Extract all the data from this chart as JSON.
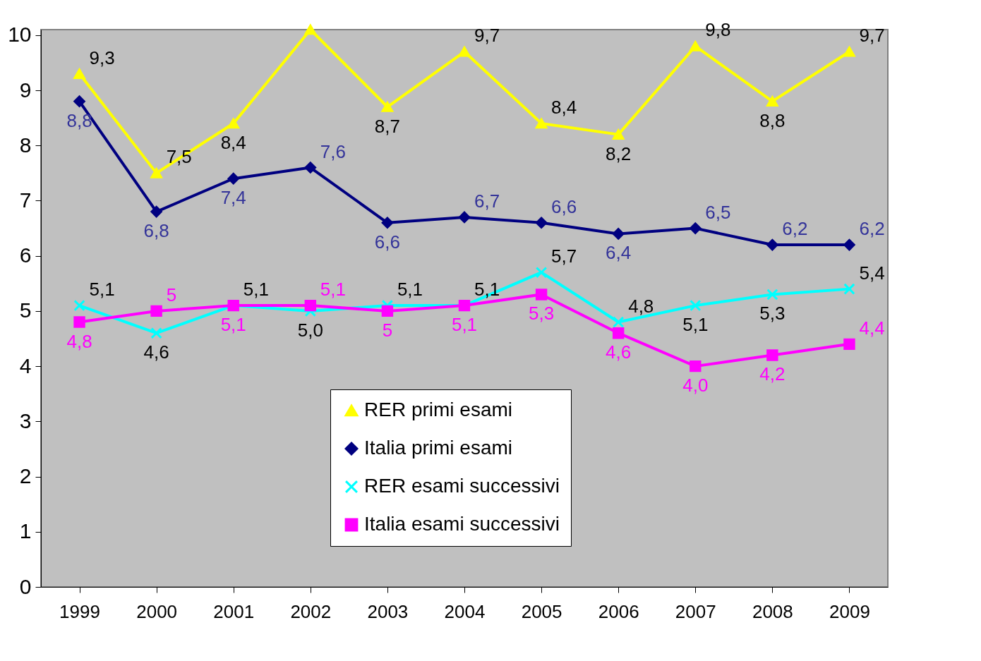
{
  "chart_data": {
    "type": "line",
    "categories": [
      "1999",
      "2000",
      "2001",
      "2002",
      "2003",
      "2004",
      "2005",
      "2006",
      "2007",
      "2008",
      "2009"
    ],
    "series": [
      {
        "name": "RER primi esami",
        "color": "#ffff00",
        "marker": "triangle",
        "values": [
          9.3,
          7.5,
          8.4,
          10.1,
          8.7,
          9.7,
          8.4,
          8.2,
          9.8,
          8.8,
          9.7
        ],
        "value_labels": [
          "9,3",
          "7,5",
          "8,4",
          null,
          "8,7",
          "9,7",
          "8,4",
          "8,2",
          "9,8",
          "8,8",
          "9,7"
        ]
      },
      {
        "name": "Italia primi esami",
        "color": "#000080",
        "marker": "diamond",
        "values": [
          8.8,
          6.8,
          7.4,
          7.6,
          6.6,
          6.7,
          6.6,
          6.4,
          6.5,
          6.2,
          6.2
        ],
        "value_labels": [
          "8,8",
          "6,8",
          "7,4",
          "7,6",
          "6,6",
          "6,7",
          "6,6",
          "6,4",
          "6,5",
          "6,2",
          "6,2"
        ]
      },
      {
        "name": "RER esami successivi",
        "color": "#00ffff",
        "marker": "cross",
        "values": [
          5.1,
          4.6,
          5.1,
          5.0,
          5.1,
          5.1,
          5.7,
          4.8,
          5.1,
          5.3,
          5.4
        ],
        "value_labels": [
          "5,1",
          "4,6",
          "5,1",
          "5,0",
          "5,1",
          "5,1",
          "5,7",
          "4,8",
          "5,1",
          "5,3",
          "5,4"
        ]
      },
      {
        "name": "Italia esami successivi",
        "color": "#ff00ff",
        "marker": "square",
        "values": [
          4.8,
          5.0,
          5.1,
          5.1,
          5.0,
          5.1,
          5.3,
          4.6,
          4.0,
          4.2,
          4.4
        ],
        "value_labels": [
          "4,8",
          "5",
          "5,1",
          "5,1",
          "5",
          "5,1",
          "5,3",
          "4,6",
          "4,0",
          "4,2",
          "4,4"
        ]
      }
    ],
    "ylim": [
      0,
      10.1
    ],
    "yticks": [
      0,
      1,
      2,
      3,
      4,
      5,
      6,
      7,
      8,
      9,
      10
    ],
    "grid": false,
    "legend": "bottom"
  }
}
